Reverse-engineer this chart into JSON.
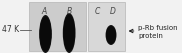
{
  "bg_color": "#f2f2f2",
  "gel1_bg": "#cccccc",
  "gel2_bg": "#d8d8d8",
  "lane_labels": [
    "A",
    "B",
    "C",
    "D"
  ],
  "lane_label_fontsize": 5.5,
  "marker_text": "47 K",
  "marker_fontsize": 5.5,
  "label_text_line1": "p-Rb fusion",
  "label_text_line2": "protein",
  "label_fontsize": 5.0,
  "arrow_color": "#222222",
  "band_color": [
    0.04,
    0.04,
    0.04
  ]
}
